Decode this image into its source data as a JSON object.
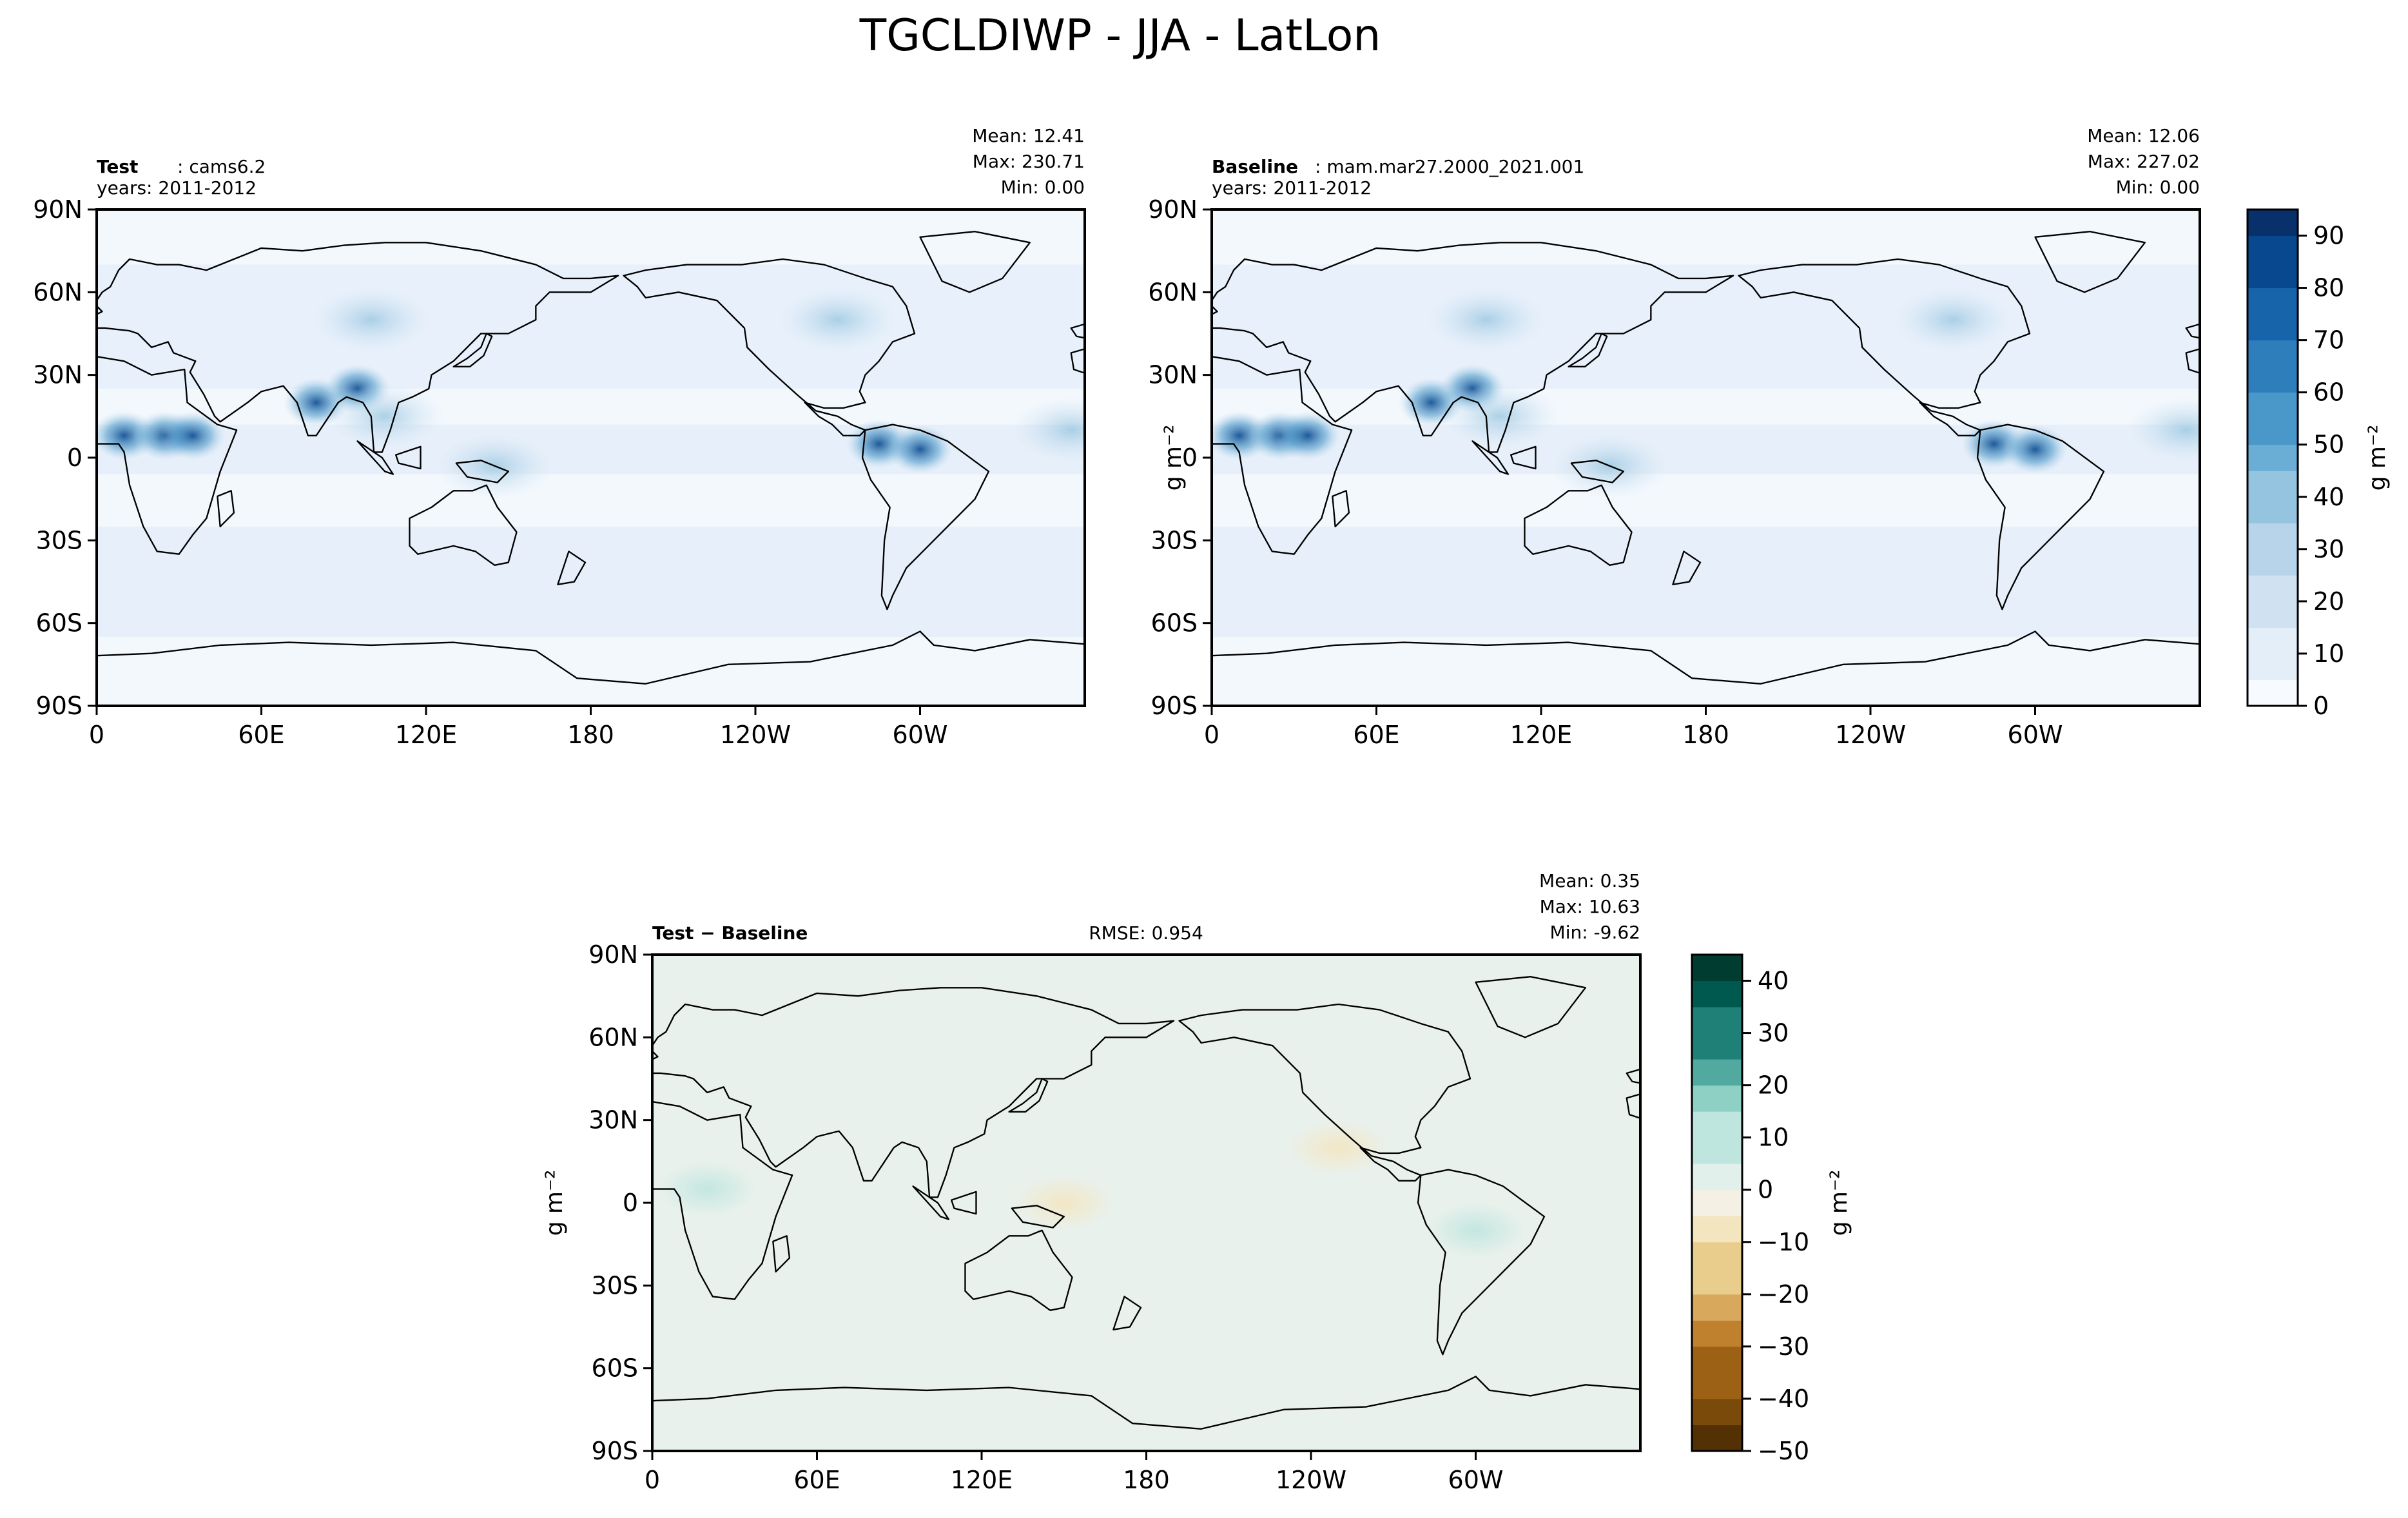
{
  "figure": {
    "title": "TGCLDIWP - JJA - LatLon"
  },
  "chart_data": [
    {
      "type": "heatmap",
      "panel": "test",
      "label_bold": "Test",
      "label_text": ": cams6.2",
      "years": "years: 2011-2012",
      "stats": [
        "Mean: 12.41",
        "Max: 230.71",
        "Min:  0.00"
      ],
      "x_ticks": [
        "0",
        "60E",
        "120E",
        "180",
        "120W",
        "60W"
      ],
      "y_ticks": [
        "90N",
        "60N",
        "30N",
        "0",
        "30S",
        "60S",
        "90S"
      ],
      "xlim": [
        0,
        360
      ],
      "ylim": [
        -90,
        90
      ],
      "colormap": "Blues",
      "ylabel": "",
      "regions": [
        {
          "lon": 10,
          "lat": 8,
          "value": 60
        },
        {
          "lon": 25,
          "lat": 8,
          "value": 70
        },
        {
          "lon": 35,
          "lat": 8,
          "value": 90
        },
        {
          "lon": 80,
          "lat": 20,
          "value": 50
        },
        {
          "lon": 95,
          "lat": 25,
          "value": 55
        },
        {
          "lon": 105,
          "lat": 15,
          "value": 40
        },
        {
          "lon": 145,
          "lat": -3,
          "value": 45
        },
        {
          "lon": 285,
          "lat": 5,
          "value": 55
        },
        {
          "lon": 300,
          "lat": 3,
          "value": 65
        },
        {
          "lon": 355,
          "lat": 10,
          "value": 45
        },
        {
          "lon": 100,
          "lat": 50,
          "value": 25
        },
        {
          "lon": 270,
          "lat": 50,
          "value": 20
        }
      ]
    },
    {
      "type": "heatmap",
      "panel": "baseline",
      "label_bold": "Baseline",
      "label_text": ": mam.mar27.2000_2021.001",
      "years": "years: 2011-2012",
      "stats": [
        "Mean: 12.06",
        "Max: 227.02",
        "Min:  0.00"
      ],
      "x_ticks": [
        "0",
        "60E",
        "120E",
        "180",
        "120W",
        "60W"
      ],
      "y_ticks": [
        "90N",
        "60N",
        "30N",
        "0",
        "30S",
        "60S",
        "90S"
      ],
      "xlim": [
        0,
        360
      ],
      "ylim": [
        -90,
        90
      ],
      "colormap": "Blues",
      "ylabel": "g m⁻²",
      "colorbar_ticks": [
        "0",
        "10",
        "20",
        "30",
        "40",
        "50",
        "60",
        "70",
        "80",
        "90"
      ],
      "colorbar_range": [
        0,
        95
      ],
      "colorbar_label": "g m⁻²",
      "regions": [
        {
          "lon": 10,
          "lat": 8,
          "value": 60
        },
        {
          "lon": 25,
          "lat": 8,
          "value": 70
        },
        {
          "lon": 35,
          "lat": 8,
          "value": 90
        },
        {
          "lon": 80,
          "lat": 20,
          "value": 50
        },
        {
          "lon": 95,
          "lat": 25,
          "value": 55
        },
        {
          "lon": 105,
          "lat": 15,
          "value": 40
        },
        {
          "lon": 145,
          "lat": -3,
          "value": 45
        },
        {
          "lon": 285,
          "lat": 5,
          "value": 55
        },
        {
          "lon": 300,
          "lat": 3,
          "value": 65
        },
        {
          "lon": 355,
          "lat": 10,
          "value": 45
        },
        {
          "lon": 100,
          "lat": 50,
          "value": 25
        },
        {
          "lon": 270,
          "lat": 50,
          "value": 20
        }
      ]
    },
    {
      "type": "heatmap",
      "panel": "difference",
      "label_bold": "Test − Baseline",
      "rmse": "RMSE: 0.954",
      "stats": [
        "Mean:  0.35",
        "Max: 10.63",
        "Min: -9.62"
      ],
      "x_ticks": [
        "0",
        "60E",
        "120E",
        "180",
        "120W",
        "60W"
      ],
      "y_ticks": [
        "90N",
        "60N",
        "30N",
        "0",
        "30S",
        "60S",
        "90S"
      ],
      "xlim": [
        0,
        360
      ],
      "ylim": [
        -90,
        90
      ],
      "colormap": "BrBG",
      "ylabel": "g m⁻²",
      "colorbar_ticks": [
        "40",
        "30",
        "20",
        "10",
        "0",
        "−10",
        "−20",
        "−30",
        "−40",
        "−50"
      ],
      "colorbar_range": [
        -50,
        45
      ],
      "colorbar_label": "g m⁻²",
      "regions": [
        {
          "lon": 20,
          "lat": 5,
          "value": 5
        },
        {
          "lon": 150,
          "lat": 0,
          "value": -3
        },
        {
          "lon": 250,
          "lat": 20,
          "value": -2
        },
        {
          "lon": 300,
          "lat": -10,
          "value": 2
        }
      ]
    }
  ],
  "colors": {
    "blues": [
      "#f7fbff",
      "#e3eef9",
      "#d0e1f2",
      "#b7d4ea",
      "#94c4df",
      "#6aaed6",
      "#4a98c9",
      "#2e7ebc",
      "#1764ab",
      "#08488e",
      "#08306b"
    ],
    "brbg": [
      "#543005",
      "#7a4a0b",
      "#9c6114",
      "#bf812d",
      "#d8a95c",
      "#e8cd8c",
      "#f3e5c0",
      "#f5f0e4",
      "#e2f0ec",
      "#bfe5df",
      "#8fd0c5",
      "#52a9a0",
      "#1f8078",
      "#00594e",
      "#003c30"
    ],
    "land_outline": "#000000",
    "diff_background": "#e9f1ec"
  }
}
